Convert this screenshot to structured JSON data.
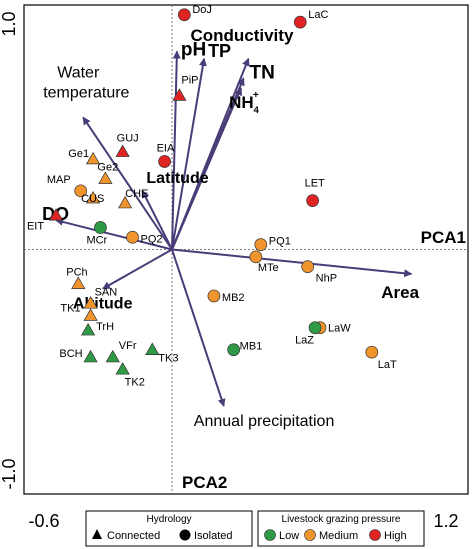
{
  "chart_data": {
    "type": "scatter",
    "subtype": "pca-biplot",
    "axes": {
      "x_name": "PCA1",
      "y_name": "PCA2",
      "xlim": [
        -0.6,
        1.2
      ],
      "ylim": [
        -1.0,
        1.0
      ],
      "x_ticks": [
        "-0.6",
        "1.2"
      ],
      "y_ticks": [
        "1.0",
        "-1.0"
      ],
      "zero_lines": true
    },
    "vectors": [
      {
        "label": "pH",
        "x": 0.02,
        "y": 0.81,
        "bold": true
      },
      {
        "label": "TP",
        "x": 0.13,
        "y": 0.78,
        "bold": true
      },
      {
        "label": "Conductivity",
        "x": 0.31,
        "y": 0.78,
        "bold": true
      },
      {
        "label": "TN",
        "x": 0.29,
        "y": 0.7,
        "bold": true
      },
      {
        "label": "NH",
        "superscript": "+",
        "subscript": "4",
        "x": 0.28,
        "y": 0.66,
        "bold": true
      },
      {
        "label": "Water\ntemperature",
        "x": -0.36,
        "y": 0.54,
        "bold": false
      },
      {
        "label": "Latitude",
        "x": -0.12,
        "y": 0.24,
        "bold": true
      },
      {
        "label": "DO",
        "x": -0.47,
        "y": 0.12,
        "bold": true
      },
      {
        "label": "Altitude",
        "x": -0.28,
        "y": -0.16,
        "bold": true
      },
      {
        "label": "Area",
        "x": 0.97,
        "y": -0.1,
        "bold": true
      },
      {
        "label": "Annual precipitation",
        "x": 0.21,
        "y": -0.64,
        "bold": false
      }
    ],
    "sites": [
      {
        "label": "DoJ",
        "x": 0.05,
        "y": 0.96,
        "shape": "circle",
        "pressure": "high"
      },
      {
        "label": "LaC",
        "x": 0.52,
        "y": 0.93,
        "shape": "circle",
        "pressure": "high"
      },
      {
        "label": "PiP",
        "x": 0.03,
        "y": 0.63,
        "shape": "triangle",
        "pressure": "high"
      },
      {
        "label": "GUJ",
        "x": -0.2,
        "y": 0.4,
        "shape": "triangle",
        "pressure": "high"
      },
      {
        "label": "EIA",
        "x": -0.03,
        "y": 0.36,
        "shape": "circle",
        "pressure": "high"
      },
      {
        "label": "LET",
        "x": 0.57,
        "y": 0.2,
        "shape": "circle",
        "pressure": "high"
      },
      {
        "label": "EIT",
        "x": -0.47,
        "y": 0.14,
        "shape": "triangle",
        "pressure": "high"
      },
      {
        "label": "Ge1",
        "x": -0.32,
        "y": 0.37,
        "shape": "triangle",
        "pressure": "medium"
      },
      {
        "label": "Ge2",
        "x": -0.27,
        "y": 0.29,
        "shape": "triangle",
        "pressure": "medium"
      },
      {
        "label": "MAP",
        "x": -0.37,
        "y": 0.24,
        "shape": "circle",
        "pressure": "medium"
      },
      {
        "label": "CUS",
        "x": -0.32,
        "y": 0.21,
        "shape": "triangle",
        "pressure": "medium"
      },
      {
        "label": "CHE",
        "x": -0.19,
        "y": 0.19,
        "shape": "triangle",
        "pressure": "medium"
      },
      {
        "label": "MCr",
        "x": -0.29,
        "y": 0.09,
        "shape": "circle",
        "pressure": "low"
      },
      {
        "label": "PQ2",
        "x": -0.16,
        "y": 0.05,
        "shape": "circle",
        "pressure": "medium"
      },
      {
        "label": "PQ1",
        "x": 0.36,
        "y": 0.02,
        "shape": "circle",
        "pressure": "medium"
      },
      {
        "label": "MTe",
        "x": 0.34,
        "y": -0.03,
        "shape": "circle",
        "pressure": "medium"
      },
      {
        "label": "NhP",
        "x": 0.55,
        "y": -0.07,
        "shape": "circle",
        "pressure": "medium"
      },
      {
        "label": "MB2",
        "x": 0.17,
        "y": -0.19,
        "shape": "circle",
        "pressure": "medium"
      },
      {
        "label": "MB1",
        "x": 0.25,
        "y": -0.41,
        "shape": "circle",
        "pressure": "low"
      },
      {
        "label": "LaW",
        "x": 0.6,
        "y": -0.32,
        "shape": "circle",
        "pressure": "medium"
      },
      {
        "label": "LaZ",
        "x": 0.58,
        "y": -0.32,
        "shape": "circle",
        "pressure": "low"
      },
      {
        "label": "LaT",
        "x": 0.81,
        "y": -0.42,
        "shape": "circle",
        "pressure": "medium"
      },
      {
        "label": "PCh",
        "x": -0.38,
        "y": -0.14,
        "shape": "triangle",
        "pressure": "medium"
      },
      {
        "label": "SAN",
        "x": -0.33,
        "y": -0.22,
        "shape": "triangle",
        "pressure": "medium"
      },
      {
        "label": "TK1",
        "x": -0.33,
        "y": -0.27,
        "shape": "triangle",
        "pressure": "medium"
      },
      {
        "label": "TrH",
        "x": -0.34,
        "y": -0.33,
        "shape": "triangle",
        "pressure": "low"
      },
      {
        "label": "BCH",
        "x": -0.33,
        "y": -0.44,
        "shape": "triangle",
        "pressure": "low"
      },
      {
        "label": "VFr",
        "x": -0.24,
        "y": -0.44,
        "shape": "triangle",
        "pressure": "low"
      },
      {
        "label": "TK3",
        "x": -0.08,
        "y": -0.41,
        "shape": "triangle",
        "pressure": "low"
      },
      {
        "label": "TK2",
        "x": -0.2,
        "y": -0.49,
        "shape": "triangle",
        "pressure": "low"
      }
    ],
    "legends": {
      "hydrology": {
        "title": "Hydrology",
        "items": [
          {
            "label": "Connected",
            "shape": "triangle"
          },
          {
            "label": "Isolated",
            "shape": "circle"
          }
        ]
      },
      "grazing": {
        "title": "Livestock grazing pressure",
        "items": [
          {
            "label": "Low",
            "key": "low"
          },
          {
            "label": "Medium",
            "key": "medium"
          },
          {
            "label": "High",
            "key": "high"
          }
        ]
      }
    },
    "colors": {
      "low": "#2e9a46",
      "medium": "#f0952e",
      "high": "#e02424",
      "arrow": "#4a3c78",
      "axis": "#000000"
    }
  }
}
